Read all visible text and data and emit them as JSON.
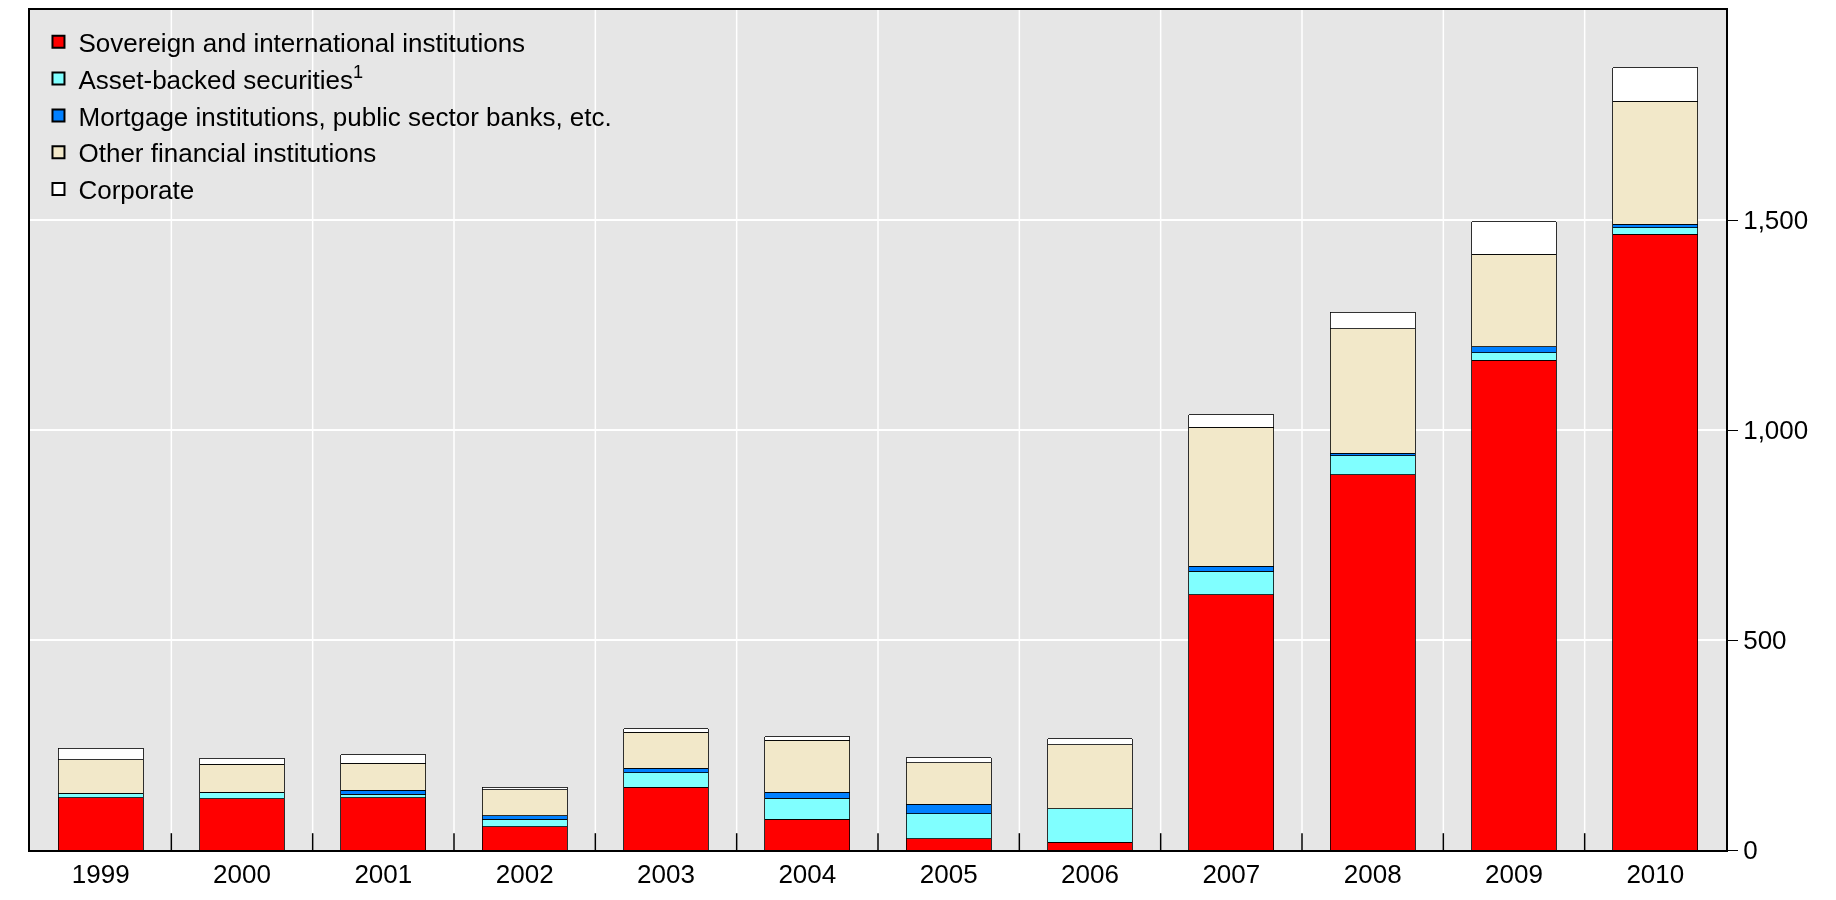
{
  "chart_data": {
    "type": "bar",
    "stacked": true,
    "categories": [
      "1999",
      "2000",
      "2001",
      "2002",
      "2003",
      "2004",
      "2005",
      "2006",
      "2007",
      "2008",
      "2009",
      "2010"
    ],
    "series": [
      {
        "name": "Sovereign and international institutions",
        "color": "#ff0000",
        "values": [
          124,
          122,
          124,
          55,
          149,
          73,
          27,
          18,
          608,
          893,
          1166,
          1466
        ]
      },
      {
        "name": "Asset-backed securities$^{1}$",
        "color": "#80ffff",
        "values": [
          11,
          14,
          9,
          18,
          35,
          50,
          59,
          80,
          56,
          46,
          18,
          16
        ]
      },
      {
        "name": "Mortgage institutions, public sector banks, etc.",
        "color": "#0080ff",
        "values": [
          null,
          2,
          9,
          9,
          11,
          14,
          23,
          null,
          12,
          6,
          14,
          8
        ]
      },
      {
        "name": "Other financial institutions",
        "color": "#f2e8c9",
        "values": [
          80,
          66,
          64,
          62,
          85,
          124,
          99,
          153,
          331,
          296,
          221,
          293
        ]
      },
      {
        "name": "Corporate",
        "color": "#ffffff",
        "values": [
          27,
          14,
          21,
          5,
          9,
          9,
          12,
          14,
          29,
          39,
          77,
          80
        ]
      }
    ],
    "ylim": [
      0,
      2000
    ],
    "yticks": [
      0,
      {
        "value": 500,
        "label": "500"
      },
      {
        "value": 1000,
        "label": "1,000"
      },
      {
        "value": 1500,
        "label": "1,500"
      }
    ],
    "grid": true,
    "legend": "top left"
  }
}
